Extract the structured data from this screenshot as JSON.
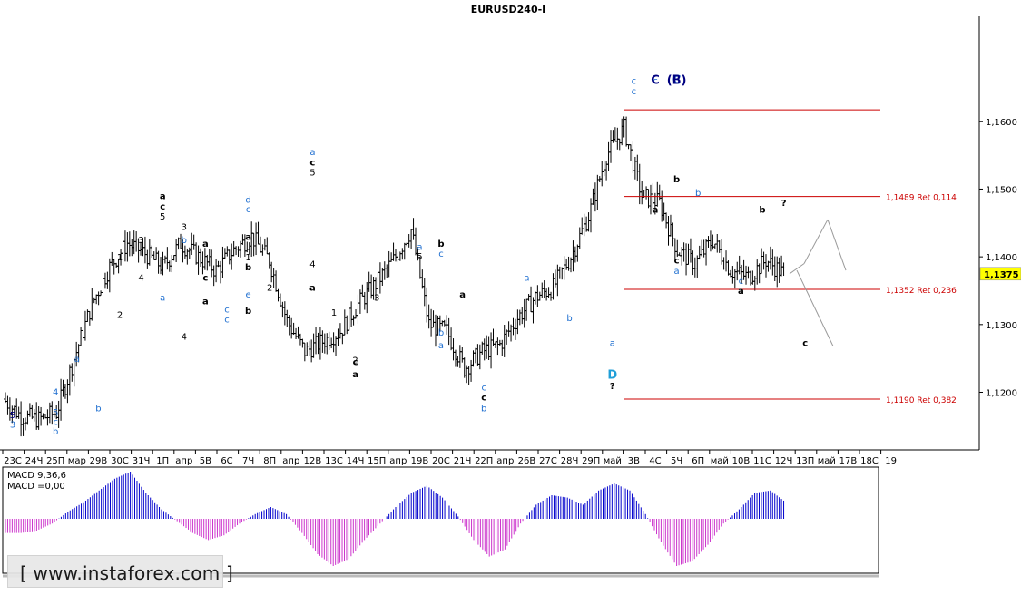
{
  "chart_data": {
    "type": "candlestick",
    "title": "EURUSD240-I",
    "current_price": "1,1375",
    "y_ticks": [
      "1,1600",
      "1,1500",
      "1,1400",
      "1,1300",
      "1,1200"
    ],
    "y_tick_values": [
      1.16,
      1.15,
      1.14,
      1.13,
      1.12
    ],
    "ylim": [
      1.1115,
      1.1755
    ],
    "x_tick_labels": [
      "23С",
      "24Ч",
      "25П",
      "мар",
      "29В",
      "30С",
      "31Ч",
      "1П",
      "апр",
      "5В",
      "6С",
      "7Ч",
      "8П",
      "апр",
      "12В",
      "13С",
      "14Ч",
      "15П",
      "апр",
      "19В",
      "20С",
      "21Ч",
      "22П",
      "апр",
      "26В",
      "27С",
      "28Ч",
      "29П",
      "май",
      "3В",
      "4С",
      "5Ч",
      "6П",
      "май",
      "10В",
      "11С",
      "12Ч",
      "13П",
      "май",
      "17В",
      "18С",
      "19"
    ],
    "closes": [
      1.119,
      1.1165,
      1.116,
      1.117,
      1.125,
      1.133,
      1.1385,
      1.142,
      1.1405,
      1.1385,
      1.142,
      1.14,
      1.138,
      1.141,
      1.143,
      1.1395,
      1.1305,
      1.126,
      1.1275,
      1.129,
      1.133,
      1.136,
      1.1395,
      1.144,
      1.13,
      1.129,
      1.1235,
      1.126,
      1.127,
      1.131,
      1.134,
      1.1355,
      1.14,
      1.146,
      1.155,
      1.159,
      1.149,
      1.148,
      1.141,
      1.139,
      1.1425,
      1.138,
      1.137,
      1.1395,
      1.1375
    ],
    "fib_levels": [
      {
        "label": "1,1489 Ret 0,114",
        "value": 1.1489
      },
      {
        "label": "1,1352 Ret 0,236",
        "value": 1.1352
      },
      {
        "label": "1,1190 Ret 0,382",
        "value": 1.119
      }
    ],
    "top_line_value": 1.1617,
    "wave_labels": [
      {
        "text": "5",
        "x": "23С",
        "y": 1.1162,
        "color": "#000080"
      },
      {
        "text": "3",
        "x": "23С",
        "y": 1.1148,
        "color": "#1f6fd0"
      },
      {
        "text": "4",
        "x": "25П",
        "y": 1.1196,
        "color": "#1f6fd0"
      },
      {
        "text": "5",
        "x": "25П",
        "y": 1.1166,
        "color": "#1f6fd0"
      },
      {
        "text": "c",
        "x": "25П",
        "y": 1.1152,
        "color": "#1f6fd0"
      },
      {
        "text": "b",
        "x": "25П",
        "y": 1.1138,
        "color": "#1f6fd0"
      },
      {
        "text": "b",
        "x": "29В",
        "y": 1.1172,
        "color": "#1f6fd0"
      },
      {
        "text": "a",
        "x": "мар",
        "y": 1.1245,
        "color": "#1f6fd0"
      },
      {
        "text": "1",
        "x": "30С",
        "y": 1.1395,
        "color": "#000000"
      },
      {
        "text": "2",
        "x": "30С",
        "y": 1.131,
        "color": "#000000"
      },
      {
        "text": "3",
        "x": "31Ч",
        "y": 1.142,
        "color": "#000000"
      },
      {
        "text": "4",
        "x": "31Ч",
        "y": 1.1365,
        "color": "#000000"
      },
      {
        "text": "a",
        "x": "1П",
        "y": 1.1485,
        "color": "#000000"
      },
      {
        "text": "c",
        "x": "1П",
        "y": 1.147,
        "color": "#000000"
      },
      {
        "text": "5",
        "x": "1П",
        "y": 1.1455,
        "color": "#000000"
      },
      {
        "text": "a",
        "x": "1П",
        "y": 1.1335,
        "color": "#1f6fd0"
      },
      {
        "text": "b",
        "x": "апр",
        "y": 1.142,
        "color": "#1f6fd0"
      },
      {
        "text": "a",
        "x": "5В",
        "y": 1.1415,
        "color": "#000000"
      },
      {
        "text": "c",
        "x": "5В",
        "y": 1.1365,
        "color": "#000000"
      },
      {
        "text": "a",
        "x": "5В",
        "y": 1.133,
        "color": "#000000"
      },
      {
        "text": "c",
        "x": "6С",
        "y": 1.1318,
        "color": "#1f6fd0"
      },
      {
        "text": "c",
        "x": "6С",
        "y": 1.1303,
        "color": "#1f6fd0"
      },
      {
        "text": "d",
        "x": "7Ч",
        "y": 1.148,
        "color": "#1f6fd0"
      },
      {
        "text": "c",
        "x": "7Ч",
        "y": 1.1466,
        "color": "#1f6fd0"
      },
      {
        "text": "a",
        "x": "7Ч",
        "y": 1.1425,
        "color": "#000000"
      },
      {
        "text": "1",
        "x": "7Ч",
        "y": 1.1395,
        "color": "#000000"
      },
      {
        "text": "b",
        "x": "7Ч",
        "y": 1.138,
        "color": "#000000"
      },
      {
        "text": "e",
        "x": "7Ч",
        "y": 1.134,
        "color": "#1f6fd0"
      },
      {
        "text": "b",
        "x": "7Ч",
        "y": 1.1316,
        "color": "#000000"
      },
      {
        "text": "2",
        "x": "8П",
        "y": 1.135,
        "color": "#000000"
      },
      {
        "text": "3",
        "x": "апр",
        "y": 1.144,
        "color": "#000000"
      },
      {
        "text": "a",
        "x": "12В",
        "y": 1.155,
        "color": "#1f6fd0"
      },
      {
        "text": "c",
        "x": "12В",
        "y": 1.1535,
        "color": "#000000"
      },
      {
        "text": "5",
        "x": "12В",
        "y": 1.152,
        "color": "#000000"
      },
      {
        "text": "4",
        "x": "12В",
        "y": 1.1385,
        "color": "#000000"
      },
      {
        "text": "a",
        "x": "12В",
        "y": 1.135,
        "color": "#000000"
      },
      {
        "text": "1",
        "x": "13С",
        "y": 1.1313,
        "color": "#000000"
      },
      {
        "text": "c",
        "x": "14Ч",
        "y": 1.124,
        "color": "#000000"
      },
      {
        "text": "a",
        "x": "14Ч",
        "y": 1.1222,
        "color": "#000000"
      },
      {
        "text": "2",
        "x": "14Ч",
        "y": 1.1243,
        "color": "#000000"
      },
      {
        "text": "3",
        "x": "15П",
        "y": 1.1335,
        "color": "#000000"
      },
      {
        "text": "4",
        "x": "апр",
        "y": 1.1278,
        "color": "#000000"
      },
      {
        "text": "a",
        "x": "19В",
        "y": 1.141,
        "color": "#1f6fd0"
      },
      {
        "text": "5",
        "x": "19В",
        "y": 1.1396,
        "color": "#000000"
      },
      {
        "text": "b",
        "x": "20С",
        "y": 1.1415,
        "color": "#000000"
      },
      {
        "text": "c",
        "x": "20С",
        "y": 1.14,
        "color": "#1f6fd0"
      },
      {
        "text": "b",
        "x": "20С",
        "y": 1.1284,
        "color": "#1f6fd0"
      },
      {
        "text": "a",
        "x": "20С",
        "y": 1.1265,
        "color": "#1f6fd0"
      },
      {
        "text": "a",
        "x": "21Ч",
        "y": 1.134,
        "color": "#000000"
      },
      {
        "text": "c",
        "x": "22П",
        "y": 1.1203,
        "color": "#1f6fd0"
      },
      {
        "text": "c",
        "x": "22П",
        "y": 1.1188,
        "color": "#000000"
      },
      {
        "text": "b",
        "x": "22П",
        "y": 1.1172,
        "color": "#1f6fd0"
      },
      {
        "text": "a",
        "x": "26В",
        "y": 1.1365,
        "color": "#1f6fd0"
      },
      {
        "text": "b",
        "x": "28Ч",
        "y": 1.1305,
        "color": "#1f6fd0"
      },
      {
        "text": "c",
        "x": "3В",
        "y": 1.1655,
        "color": "#1f6fd0"
      },
      {
        "text": "c",
        "x": "4С",
        "y": 1.1655,
        "color": "#1f6fd0"
      },
      {
        "text": "C",
        "x": "4С",
        "y": 1.1655,
        "color": "#000080"
      },
      {
        "text": "C",
        "x": "5Ч",
        "y": 1.1655,
        "color": "#1f6fd0"
      },
      {
        "text": "(B)",
        "x": "5Ч",
        "y": 1.1655,
        "color": "#000080"
      },
      {
        "text": "c",
        "x": "3В",
        "y": 1.164,
        "color": "#1f6fd0"
      },
      {
        "text": "a",
        "x": "4С",
        "y": 1.1465,
        "color": "#000000"
      },
      {
        "text": "b",
        "x": "5Ч",
        "y": 1.151,
        "color": "#000000"
      },
      {
        "text": "b",
        "x": "6П",
        "y": 1.149,
        "color": "#1f6fd0"
      },
      {
        "text": "c",
        "x": "5Ч",
        "y": 1.139,
        "color": "#000000"
      },
      {
        "text": "a",
        "x": "5Ч",
        "y": 1.1375,
        "color": "#1f6fd0"
      },
      {
        "text": "c",
        "x": "10В",
        "y": 1.136,
        "color": "#1f6fd0"
      },
      {
        "text": "a",
        "x": "10В",
        "y": 1.1345,
        "color": "#000000"
      },
      {
        "text": "b",
        "x": "11С",
        "y": 1.1465,
        "color": "#000000"
      },
      {
        "text": "?",
        "x": "12Ч",
        "y": 1.1475,
        "color": "#000000"
      },
      {
        "text": "c",
        "x": "13П",
        "y": 1.1268,
        "color": "#000000"
      },
      {
        "text": "a",
        "x": "май",
        "y": 1.1268,
        "color": "#1f6fd0"
      },
      {
        "text": "D",
        "x": "май",
        "y": 1.122,
        "color": "#1f9fd8"
      },
      {
        "text": "?",
        "x": "май",
        "y": 1.1205,
        "color": "#000000"
      }
    ],
    "macd": {
      "label1": "MACD 9,36,6",
      "label2": "MACD =0,00",
      "values": [
        -0.3,
        -0.3,
        -0.25,
        -0.1,
        0.15,
        0.35,
        0.6,
        0.85,
        1.0,
        0.55,
        0.2,
        -0.05,
        -0.3,
        -0.45,
        -0.35,
        -0.1,
        0.1,
        0.25,
        0.1,
        -0.3,
        -0.75,
        -1.0,
        -0.85,
        -0.45,
        -0.1,
        0.25,
        0.55,
        0.7,
        0.45,
        0.05,
        -0.45,
        -0.8,
        -0.65,
        -0.1,
        0.3,
        0.5,
        0.45,
        0.3,
        0.6,
        0.75,
        0.6,
        0.1,
        -0.5,
        -1.0,
        -0.9,
        -0.55,
        -0.1,
        0.2,
        0.55,
        0.6,
        0.35
      ],
      "bottom_labels": [
        "MACD 9,36,6",
        "MACD =0,00"
      ]
    }
  },
  "watermark": "[ www.instaforex.com ]"
}
